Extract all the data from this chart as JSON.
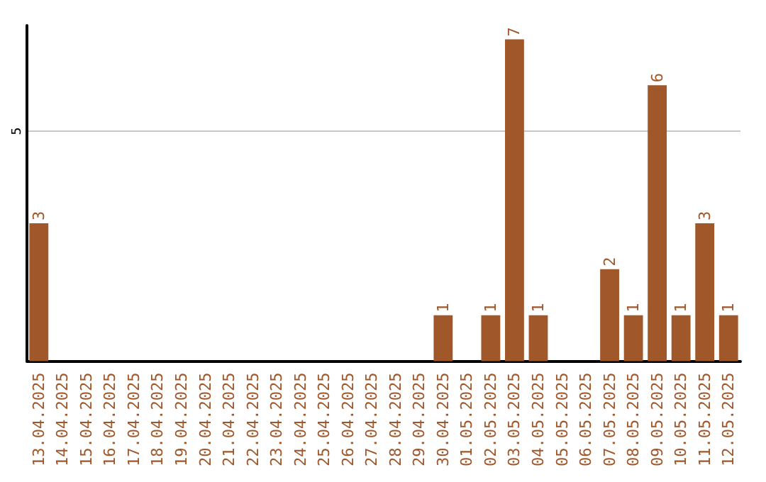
{
  "chart_data": {
    "type": "bar",
    "categories": [
      "13.04.2025",
      "14.04.2025",
      "15.04.2025",
      "16.04.2025",
      "17.04.2025",
      "18.04.2025",
      "19.04.2025",
      "20.04.2025",
      "21.04.2025",
      "22.04.2025",
      "23.04.2025",
      "24.04.2025",
      "25.04.2025",
      "26.04.2025",
      "27.04.2025",
      "28.04.2025",
      "29.04.2025",
      "30.04.2025",
      "01.05.2025",
      "02.05.2025",
      "03.05.2025",
      "04.05.2025",
      "05.05.2025",
      "06.05.2025",
      "07.05.2025",
      "08.05.2025",
      "09.05.2025",
      "10.05.2025",
      "11.05.2025",
      "12.05.2025"
    ],
    "values": [
      3,
      0,
      0,
      0,
      0,
      0,
      0,
      0,
      0,
      0,
      0,
      0,
      0,
      0,
      0,
      0,
      0,
      1,
      0,
      1,
      7,
      1,
      0,
      0,
      2,
      1,
      6,
      1,
      3,
      1
    ],
    "value_labels": [
      "3",
      null,
      null,
      null,
      null,
      null,
      null,
      null,
      null,
      null,
      null,
      null,
      null,
      null,
      null,
      null,
      null,
      "1",
      null,
      "1",
      "7",
      "1",
      null,
      null,
      "2",
      "1",
      "6",
      "1",
      "3",
      "1"
    ],
    "color": "#a0572a",
    "ylim": [
      0,
      7.3
    ],
    "yticks": [
      5
    ],
    "grid": "y"
  }
}
